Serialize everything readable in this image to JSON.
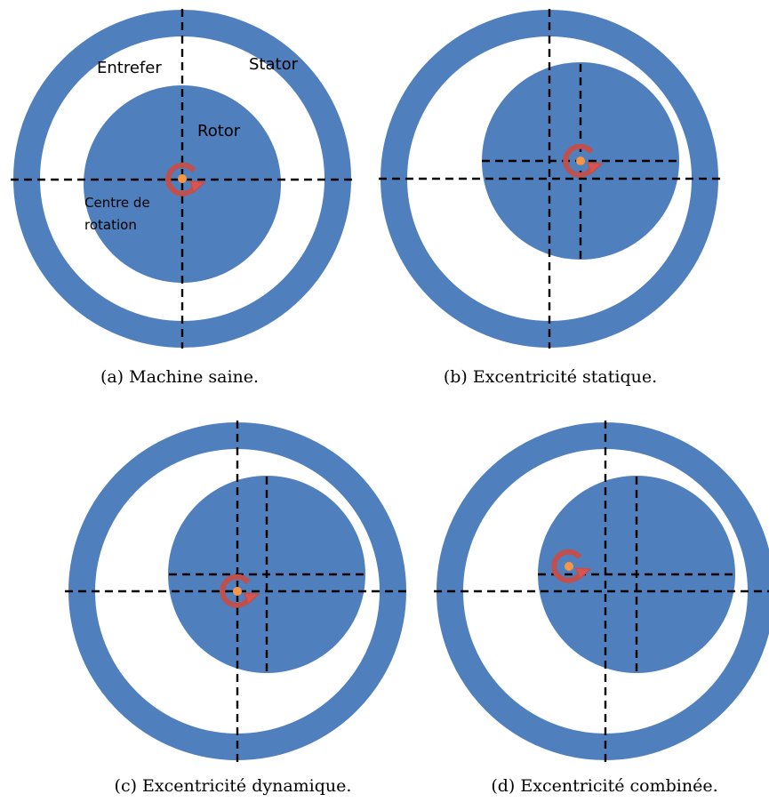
{
  "colors": {
    "steel": "#4f7fbd",
    "arrow": "#c0504d",
    "arrow_fill": "#d9534f",
    "center": "#f79646"
  },
  "panels": [
    {
      "id": "a",
      "caption": "(a) Machine saine.",
      "labels": {
        "entrefer": "Entrefer",
        "stator": "Stator",
        "rotor": "Rotor",
        "centre": [
          "Centre de",
          "rotation"
        ]
      }
    },
    {
      "id": "b",
      "caption": "(b) Excentricité statique."
    },
    {
      "id": "c",
      "caption": "(c) Excentricité dynamique."
    },
    {
      "id": "d",
      "caption": "(d) Excentricité combinée."
    }
  ]
}
